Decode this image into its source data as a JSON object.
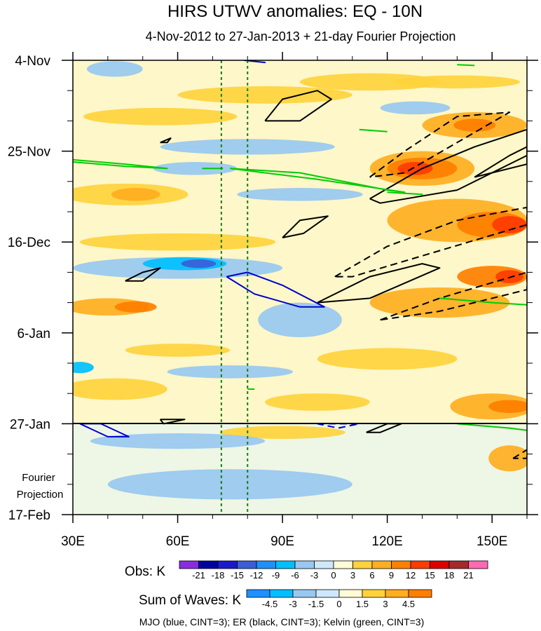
{
  "chart_data": {
    "type": "heatmap",
    "title": "HIRS UTWV anomalies: EQ - 10N",
    "subtitle": "4-Nov-2012 to 27-Jan-2013 + 21-day Fourier Projection",
    "x_axis": {
      "range": [
        30,
        160
      ],
      "ticks": [
        {
          "value": 30,
          "label": "30E"
        },
        {
          "value": 60,
          "label": "60E"
        },
        {
          "value": 90,
          "label": "90E"
        },
        {
          "value": 120,
          "label": "120E"
        },
        {
          "value": 150,
          "label": "150E"
        }
      ],
      "minor_step": 10
    },
    "y_axis": {
      "range": [
        0,
        105
      ],
      "ticks": [
        {
          "value": 0,
          "label": "4-Nov"
        },
        {
          "value": 21,
          "label": "25-Nov"
        },
        {
          "value": 42,
          "label": "16-Dec"
        },
        {
          "value": 63,
          "label": "6-Jan"
        },
        {
          "value": 84,
          "label": "27-Jan"
        },
        {
          "value": 105,
          "label": "17-Feb"
        }
      ],
      "minor_step": 7
    },
    "projection_start_day": 84,
    "projection_label": [
      "Fourier",
      "Projection"
    ],
    "reference_lines_lon": [
      72.5,
      80
    ],
    "obs_colorbar": {
      "label": "Obs: K",
      "levels": [
        "-21",
        "-18",
        "-15",
        "-12",
        "-9",
        "-6",
        "-3",
        "0",
        "3",
        "6",
        "9",
        "12",
        "15",
        "18",
        "21"
      ],
      "colors": [
        "#8a2be2",
        "#0000a0",
        "#1a1acd",
        "#3a5ed8",
        "#1e90ff",
        "#00bfff",
        "#98c8f0",
        "#cde8fa",
        "#fffbd5",
        "#ffd23c",
        "#ffae21",
        "#ff7f00",
        "#ff3b00",
        "#dd0000",
        "#a52a2a",
        "#ff69b4"
      ]
    },
    "waves_colorbar": {
      "label": "Sum of Waves: K",
      "levels": [
        "-4.5",
        "-3",
        "-1.5",
        "0",
        "1.5",
        "3",
        "4.5"
      ],
      "colors": [
        "#1e90ff",
        "#00bfff",
        "#98c8f0",
        "#cde8fa",
        "#fffbd5",
        "#ffd23c",
        "#ffae21",
        "#ff7f00"
      ]
    },
    "footer": "MJO (blue, CINT=3); ER (black, CINT=3); Kelvin (green, CINT=3)",
    "anomaly_patches": [
      {
        "lon": 115,
        "day": 5,
        "rx": 20,
        "ry": 2,
        "level": "pos1"
      },
      {
        "lon": 140,
        "day": 5,
        "rx": 18,
        "ry": 1.5,
        "level": "pos1"
      },
      {
        "lon": 85,
        "day": 8,
        "rx": 25,
        "ry": 2,
        "level": "pos1"
      },
      {
        "lon": 145,
        "day": 15,
        "rx": 15,
        "ry": 3,
        "level": "pos2"
      },
      {
        "lon": 145,
        "day": 15,
        "rx": 6,
        "ry": 1.5,
        "level": "pos3"
      },
      {
        "lon": 55,
        "day": 13,
        "rx": 22,
        "ry": 2,
        "level": "pos1"
      },
      {
        "lon": 130,
        "day": 25,
        "rx": 15,
        "ry": 4,
        "level": "pos2"
      },
      {
        "lon": 130,
        "day": 25,
        "rx": 10,
        "ry": 2.5,
        "level": "pos3"
      },
      {
        "lon": 128,
        "day": 25,
        "rx": 5,
        "ry": 1.5,
        "level": "pos4"
      },
      {
        "lon": 45,
        "day": 31,
        "rx": 18,
        "ry": 2.5,
        "level": "pos1"
      },
      {
        "lon": 48,
        "day": 31,
        "rx": 7,
        "ry": 1.5,
        "level": "pos2"
      },
      {
        "lon": 140,
        "day": 37,
        "rx": 20,
        "ry": 5,
        "level": "pos2"
      },
      {
        "lon": 150,
        "day": 38,
        "rx": 10,
        "ry": 3,
        "level": "pos3"
      },
      {
        "lon": 155,
        "day": 38,
        "rx": 5,
        "ry": 2,
        "level": "pos4"
      },
      {
        "lon": 60,
        "day": 42,
        "rx": 28,
        "ry": 2,
        "level": "pos1"
      },
      {
        "lon": 135,
        "day": 56,
        "rx": 20,
        "ry": 3.5,
        "level": "pos2"
      },
      {
        "lon": 150,
        "day": 50,
        "rx": 10,
        "ry": 2.5,
        "level": "pos3"
      },
      {
        "lon": 155,
        "day": 50,
        "rx": 4,
        "ry": 1.5,
        "level": "pos4"
      },
      {
        "lon": 40,
        "day": 57,
        "rx": 12,
        "ry": 2,
        "level": "pos2"
      },
      {
        "lon": 48,
        "day": 57,
        "rx": 6,
        "ry": 1.3,
        "level": "pos3"
      },
      {
        "lon": 120,
        "day": 69,
        "rx": 20,
        "ry": 2.5,
        "level": "pos1"
      },
      {
        "lon": 60,
        "day": 67,
        "rx": 15,
        "ry": 1.5,
        "level": "pos1"
      },
      {
        "lon": 42,
        "day": 76,
        "rx": 15,
        "ry": 2.5,
        "level": "pos1"
      },
      {
        "lon": 100,
        "day": 79,
        "rx": 15,
        "ry": 2,
        "level": "pos1"
      },
      {
        "lon": 150,
        "day": 80,
        "rx": 12,
        "ry": 3,
        "level": "pos2"
      },
      {
        "lon": 155,
        "day": 80,
        "rx": 6,
        "ry": 1.5,
        "level": "pos3"
      },
      {
        "lon": 90,
        "day": 86,
        "rx": 18,
        "ry": 1.5,
        "level": "pos1"
      },
      {
        "lon": 155,
        "day": 92,
        "rx": 6,
        "ry": 3,
        "level": "pos2"
      },
      {
        "lon": 42,
        "day": 2,
        "rx": 8,
        "ry": 1.8,
        "level": "neg1"
      },
      {
        "lon": 128,
        "day": 11,
        "rx": 10,
        "ry": 1.5,
        "level": "neg1"
      },
      {
        "lon": 80,
        "day": 20,
        "rx": 25,
        "ry": 1.8,
        "level": "neg1"
      },
      {
        "lon": 65,
        "day": 25,
        "rx": 12,
        "ry": 1.5,
        "level": "neg1"
      },
      {
        "lon": 95,
        "day": 31,
        "rx": 18,
        "ry": 1.5,
        "level": "neg1"
      },
      {
        "lon": 60,
        "day": 48,
        "rx": 30,
        "ry": 2.5,
        "level": "neg1"
      },
      {
        "lon": 62,
        "day": 47,
        "rx": 12,
        "ry": 1.5,
        "level": "neg2"
      },
      {
        "lon": 66,
        "day": 47,
        "rx": 5,
        "ry": 1,
        "level": "neg3"
      },
      {
        "lon": 95,
        "day": 60,
        "rx": 12,
        "ry": 4,
        "level": "neg1"
      },
      {
        "lon": 32,
        "day": 71,
        "rx": 4,
        "ry": 1.3,
        "level": "neg2"
      },
      {
        "lon": 75,
        "day": 72,
        "rx": 18,
        "ry": 1.5,
        "level": "neg1"
      },
      {
        "lon": 60,
        "day": 88,
        "rx": 25,
        "ry": 1.8,
        "level": "neg1"
      },
      {
        "lon": 75,
        "day": 98,
        "rx": 35,
        "ry": 3.5,
        "level": "neg1"
      }
    ],
    "wave_contours": [
      {
        "wave": "ER",
        "color": "#000000",
        "dash": false,
        "points": [
          [
            85,
            14
          ],
          [
            90,
            9
          ],
          [
            100,
            7
          ],
          [
            104,
            9
          ],
          [
            95,
            14
          ],
          [
            85,
            14
          ]
        ]
      },
      {
        "wave": "ER",
        "color": "#000000",
        "dash": true,
        "points": [
          [
            115,
            27
          ],
          [
            125,
            21
          ],
          [
            140,
            13
          ],
          [
            155,
            12
          ],
          [
            140,
            19
          ],
          [
            125,
            26
          ],
          [
            115,
            27
          ]
        ]
      },
      {
        "wave": "ER",
        "color": "#000000",
        "dash": false,
        "points": [
          [
            115,
            32
          ],
          [
            130,
            25
          ],
          [
            145,
            20
          ],
          [
            160,
            16
          ],
          [
            160,
            22
          ],
          [
            140,
            30
          ],
          [
            118,
            33
          ],
          [
            115,
            32
          ]
        ]
      },
      {
        "wave": "ER",
        "color": "#000000",
        "dash": false,
        "points": [
          [
            145,
            27
          ],
          [
            155,
            22
          ],
          [
            160,
            20
          ],
          [
            160,
            24
          ],
          [
            145,
            27
          ]
        ]
      },
      {
        "wave": "ER",
        "color": "#000000",
        "dash": false,
        "points": [
          [
            90,
            41
          ],
          [
            95,
            37
          ],
          [
            103,
            36
          ],
          [
            96,
            40
          ],
          [
            90,
            41
          ]
        ]
      },
      {
        "wave": "ER",
        "color": "#000000",
        "dash": true,
        "points": [
          [
            105,
            50
          ],
          [
            120,
            43
          ],
          [
            140,
            37
          ],
          [
            160,
            34
          ],
          [
            160,
            38
          ],
          [
            135,
            44
          ],
          [
            110,
            50
          ],
          [
            105,
            50
          ]
        ]
      },
      {
        "wave": "ER",
        "color": "#000000",
        "dash": false,
        "points": [
          [
            100,
            56
          ],
          [
            115,
            50
          ],
          [
            130,
            47
          ],
          [
            135,
            48
          ],
          [
            115,
            55
          ],
          [
            100,
            56
          ]
        ]
      },
      {
        "wave": "ER",
        "color": "#000000",
        "dash": true,
        "points": [
          [
            118,
            60
          ],
          [
            135,
            55
          ],
          [
            160,
            49
          ],
          [
            160,
            53
          ],
          [
            135,
            58
          ],
          [
            118,
            60
          ]
        ]
      },
      {
        "wave": "ER",
        "color": "#000000",
        "dash": false,
        "points": [
          [
            45,
            51
          ],
          [
            50,
            49
          ],
          [
            55,
            48
          ],
          [
            50,
            51
          ],
          [
            45,
            51
          ]
        ]
      },
      {
        "wave": "ER",
        "color": "#000000",
        "dash": false,
        "points": [
          [
            55,
            19
          ],
          [
            58,
            18
          ],
          [
            57,
            19
          ],
          [
            55,
            19
          ]
        ]
      },
      {
        "wave": "ER",
        "color": "#000000",
        "dash": false,
        "points": [
          [
            55,
            83
          ],
          [
            62,
            83
          ],
          [
            56,
            84
          ],
          [
            55,
            83
          ]
        ]
      },
      {
        "wave": "ER",
        "color": "#000000",
        "dash": false,
        "points": [
          [
            114,
            86
          ],
          [
            120,
            84
          ],
          [
            124,
            84
          ],
          [
            118,
            86
          ],
          [
            114,
            86
          ]
        ]
      },
      {
        "wave": "ER",
        "color": "#000000",
        "dash": true,
        "points": [
          [
            156,
            92
          ],
          [
            160,
            90
          ],
          [
            160,
            92
          ],
          [
            156,
            92
          ]
        ]
      },
      {
        "wave": "MJO",
        "color": "#0000cd",
        "dash": false,
        "points": [
          [
            74,
            50
          ],
          [
            80,
            49
          ],
          [
            90,
            52
          ],
          [
            102,
            57
          ],
          [
            95,
            57
          ],
          [
            82,
            54
          ],
          [
            74,
            50
          ]
        ]
      },
      {
        "wave": "MJO",
        "color": "#0000cd",
        "dash": false,
        "points": [
          [
            32,
            84
          ],
          [
            38,
            84
          ],
          [
            46,
            87
          ],
          [
            40,
            87
          ],
          [
            32,
            84
          ]
        ]
      },
      {
        "wave": "MJO",
        "color": "#0000cd",
        "dash": true,
        "points": [
          [
            100,
            84
          ],
          [
            106,
            84
          ],
          [
            112,
            84
          ],
          [
            106,
            85
          ],
          [
            100,
            84
          ]
        ]
      },
      {
        "wave": "MJO",
        "color": "#0000cd",
        "dash": false,
        "points": [
          [
            79,
            0
          ],
          [
            85,
            0.5
          ],
          [
            79,
            0
          ]
        ]
      },
      {
        "wave": "Kelvin",
        "color": "#00cc00",
        "dash": false,
        "points": [
          [
            30,
            23
          ],
          [
            45,
            24
          ],
          [
            57,
            25
          ],
          [
            45,
            24.5
          ],
          [
            30,
            23.5
          ]
        ]
      },
      {
        "wave": "Kelvin",
        "color": "#00cc00",
        "dash": false,
        "points": [
          [
            67,
            25
          ],
          [
            73,
            25
          ]
        ]
      },
      {
        "wave": "Kelvin",
        "color": "#00cc00",
        "dash": false,
        "points": [
          [
            75,
            25
          ],
          [
            95,
            26
          ],
          [
            120,
            30
          ],
          [
            125,
            30.5
          ],
          [
            100,
            27.5
          ],
          [
            80,
            25.5
          ],
          [
            75,
            25
          ]
        ]
      },
      {
        "wave": "Kelvin",
        "color": "#00cc00",
        "dash": false,
        "points": [
          [
            120,
            30.5
          ],
          [
            130,
            31
          ],
          [
            120,
            30.5
          ]
        ]
      },
      {
        "wave": "Kelvin",
        "color": "#00cc00",
        "dash": false,
        "points": [
          [
            112,
            16
          ],
          [
            120,
            16.5
          ]
        ]
      },
      {
        "wave": "Kelvin",
        "color": "#00cc00",
        "dash": false,
        "points": [
          [
            140,
            1
          ],
          [
            145,
            1.2
          ]
        ]
      },
      {
        "wave": "Kelvin",
        "color": "#00cc00",
        "dash": false,
        "points": [
          [
            135,
            55
          ],
          [
            150,
            56
          ],
          [
            160,
            56.5
          ]
        ]
      },
      {
        "wave": "Kelvin",
        "color": "#00cc00",
        "dash": false,
        "points": [
          [
            140,
            84
          ],
          [
            155,
            85
          ],
          [
            160,
            85.5
          ]
        ]
      },
      {
        "wave": "Kelvin",
        "color": "#00cc00",
        "dash": false,
        "points": [
          [
            80,
            76
          ],
          [
            82,
            76
          ]
        ]
      }
    ]
  }
}
